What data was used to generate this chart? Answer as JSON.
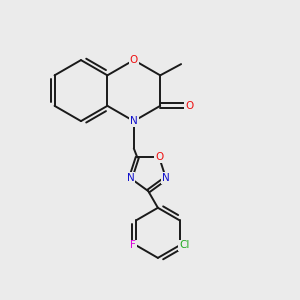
{
  "background_color": "#ebebeb",
  "bond_color": "#1a1a1a",
  "atom_colors": {
    "O": "#ee1111",
    "N": "#1111cc",
    "F": "#dd00dd",
    "Cl": "#22aa22",
    "C": "#1a1a1a"
  },
  "figsize": [
    3.0,
    3.0
  ],
  "dpi": 100,
  "lw": 1.4,
  "fs": 7.5
}
